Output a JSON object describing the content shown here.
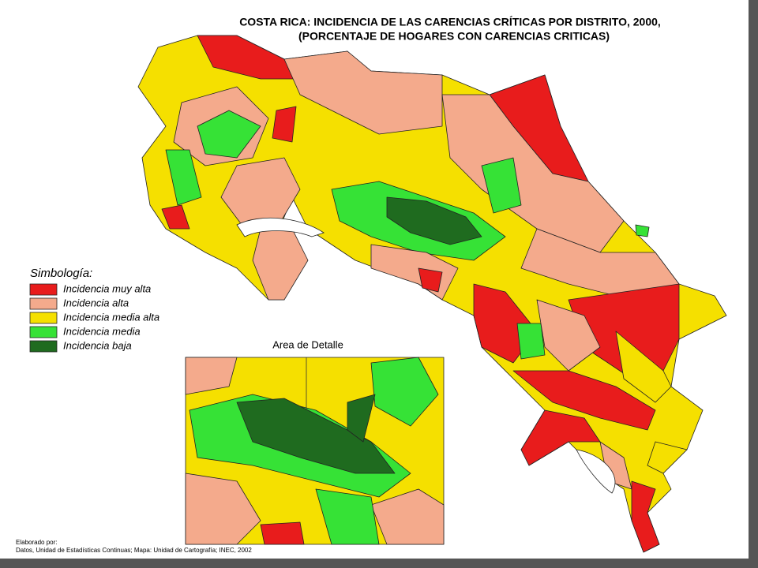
{
  "header": {
    "title_line1": "COSTA RICA:  INCIDENCIA DE LAS CARENCIAS CRÍTICAS POR DISTRITO, 2000,",
    "title_line2": "(PORCENTAJE  DE HOGARES CON CARENCIAS CRITICAS)"
  },
  "legend": {
    "title": "Simbología:",
    "items": [
      {
        "label": "Incidencia muy alta",
        "color": "#e81c1c"
      },
      {
        "label": "Incidencia alta",
        "color": "#f4aa8c"
      },
      {
        "label": "Incidencia media alta",
        "color": "#f5e000"
      },
      {
        "label": "Incidencia media",
        "color": "#36e236"
      },
      {
        "label": "Incidencia baja",
        "color": "#1f6b1f"
      }
    ]
  },
  "inset": {
    "title": "Area de Detalle"
  },
  "credits": {
    "line1": "Elaborado por:",
    "line2": "Datos, Unidad de Estadísticas Continuas; Mapa: Unidad de Cartografía; INEC, 2002"
  }
}
